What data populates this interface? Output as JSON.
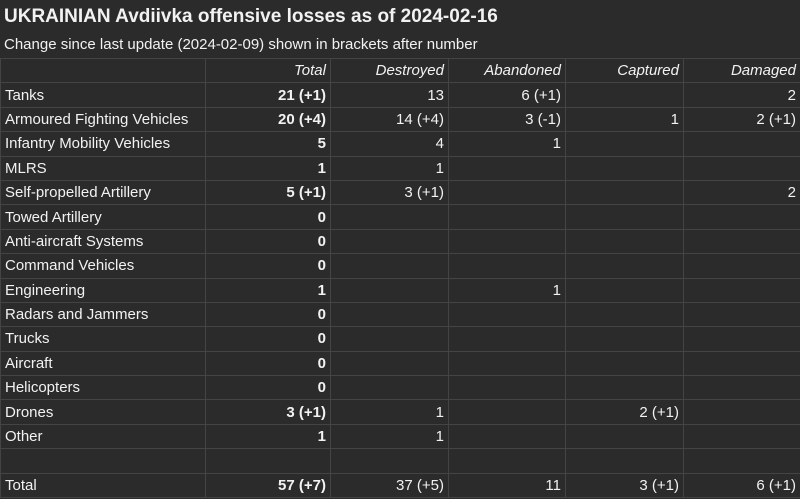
{
  "title": "UKRAINIAN Avdiivka offensive losses as of 2024-02-16",
  "subtitle": "Change since last update (2024-02-09) shown in brackets after number",
  "columns": [
    "",
    "Total",
    "Destroyed",
    "Abandoned",
    "Captured",
    "Damaged"
  ],
  "rows": [
    {
      "label": "Tanks",
      "total": "21 (+1)",
      "destroyed": "13",
      "abandoned": "6 (+1)",
      "captured": "",
      "damaged": "2"
    },
    {
      "label": "Armoured Fighting Vehicles",
      "total": "20 (+4)",
      "destroyed": "14 (+4)",
      "abandoned": "3 (-1)",
      "captured": "1",
      "damaged": "2 (+1)"
    },
    {
      "label": "Infantry Mobility Vehicles",
      "total": "5",
      "destroyed": "4",
      "abandoned": "1",
      "captured": "",
      "damaged": ""
    },
    {
      "label": "MLRS",
      "total": "1",
      "destroyed": "1",
      "abandoned": "",
      "captured": "",
      "damaged": ""
    },
    {
      "label": "Self-propelled Artillery",
      "total": "5 (+1)",
      "destroyed": "3 (+1)",
      "abandoned": "",
      "captured": "",
      "damaged": "2"
    },
    {
      "label": "Towed Artillery",
      "total": "0",
      "destroyed": "",
      "abandoned": "",
      "captured": "",
      "damaged": ""
    },
    {
      "label": "Anti-aircraft Systems",
      "total": "0",
      "destroyed": "",
      "abandoned": "",
      "captured": "",
      "damaged": ""
    },
    {
      "label": "Command Vehicles",
      "total": "0",
      "destroyed": "",
      "abandoned": "",
      "captured": "",
      "damaged": ""
    },
    {
      "label": "Engineering",
      "total": "1",
      "destroyed": "",
      "abandoned": "1",
      "captured": "",
      "damaged": ""
    },
    {
      "label": "Radars and Jammers",
      "total": "0",
      "destroyed": "",
      "abandoned": "",
      "captured": "",
      "damaged": ""
    },
    {
      "label": "Trucks",
      "total": "0",
      "destroyed": "",
      "abandoned": "",
      "captured": "",
      "damaged": ""
    },
    {
      "label": "Aircraft",
      "total": "0",
      "destroyed": "",
      "abandoned": "",
      "captured": "",
      "damaged": ""
    },
    {
      "label": "Helicopters",
      "total": "0",
      "destroyed": "",
      "abandoned": "",
      "captured": "",
      "damaged": ""
    },
    {
      "label": "Drones",
      "total": "3 (+1)",
      "destroyed": "1",
      "abandoned": "",
      "captured": "2 (+1)",
      "damaged": ""
    },
    {
      "label": "Other",
      "total": "1",
      "destroyed": "1",
      "abandoned": "",
      "captured": "",
      "damaged": ""
    }
  ],
  "totals": {
    "label": "Total",
    "total": "57 (+7)",
    "destroyed": "37 (+5)",
    "abandoned": "11",
    "captured": "3 (+1)",
    "damaged": "6 (+1)"
  },
  "colors": {
    "background": "#2b2b2b",
    "text": "#f2f2f2",
    "gridline": "#444444"
  }
}
